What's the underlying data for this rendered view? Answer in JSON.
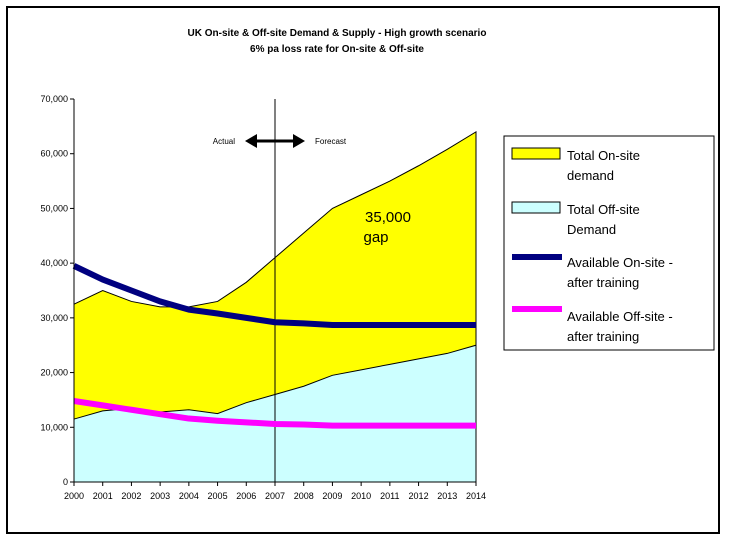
{
  "chart_data": {
    "type": "area",
    "title_line1": "UK On-site & Off-site Demand & Supply - High growth scenario",
    "title_line2": "6% pa loss rate for On-site & Off-site",
    "x": [
      2000,
      2001,
      2002,
      2003,
      2004,
      2005,
      2006,
      2007,
      2008,
      2009,
      2010,
      2011,
      2012,
      2013,
      2014
    ],
    "xticks": [
      "2000",
      "2001",
      "2002",
      "2003",
      "2004",
      "2005",
      "2006",
      "2007",
      "2008",
      "2009",
      "2010",
      "2011",
      "2012",
      "2013",
      "2014"
    ],
    "ylim": [
      0,
      70000
    ],
    "yticks": [
      "0",
      "10,000",
      "20,000",
      "30,000",
      "40,000",
      "50,000",
      "60,000",
      "70,000"
    ],
    "ytick_values": [
      0,
      10000,
      20000,
      30000,
      40000,
      50000,
      60000,
      70000
    ],
    "series": [
      {
        "name": "Total On-site demand",
        "kind": "area",
        "color": "#ffff00",
        "values": [
          32500,
          35000,
          33000,
          32000,
          32000,
          33000,
          36500,
          41000,
          45500,
          50000,
          52500,
          55000,
          57800,
          60800,
          64000
        ]
      },
      {
        "name": "Total Off-site Demand",
        "kind": "area",
        "color": "#ccffff",
        "values": [
          11500,
          13000,
          13500,
          12800,
          13200,
          12500,
          14500,
          16000,
          17500,
          19500,
          20500,
          21500,
          22500,
          23500,
          25000
        ]
      },
      {
        "name": "Available On-site - after training",
        "kind": "line",
        "color": "#000080",
        "values": [
          39500,
          37000,
          35000,
          33000,
          31500,
          30800,
          30000,
          29200,
          29000,
          28700,
          28700,
          28700,
          28700,
          28700,
          28700
        ]
      },
      {
        "name": "Available Off-site - after training",
        "kind": "line",
        "color": "#ff00ff",
        "values": [
          14800,
          14000,
          13200,
          12400,
          11600,
          11200,
          10900,
          10600,
          10500,
          10300,
          10300,
          10300,
          10300,
          10300,
          10300
        ]
      }
    ],
    "divider_year": 2007,
    "annotations": {
      "actual": "Actual",
      "forecast": "Forecast",
      "gap_line1": "35,000",
      "gap_line2": "gap"
    },
    "legend": {
      "items": [
        {
          "line1": "Total On-site",
          "line2": "demand"
        },
        {
          "line1": "Total Off-site",
          "line2": "Demand"
        },
        {
          "line1": "Available On-site -",
          "line2": "after training"
        },
        {
          "line1": "Available Off-site -",
          "line2": "after training"
        }
      ]
    },
    "grid": false,
    "legend_placement": "right"
  }
}
